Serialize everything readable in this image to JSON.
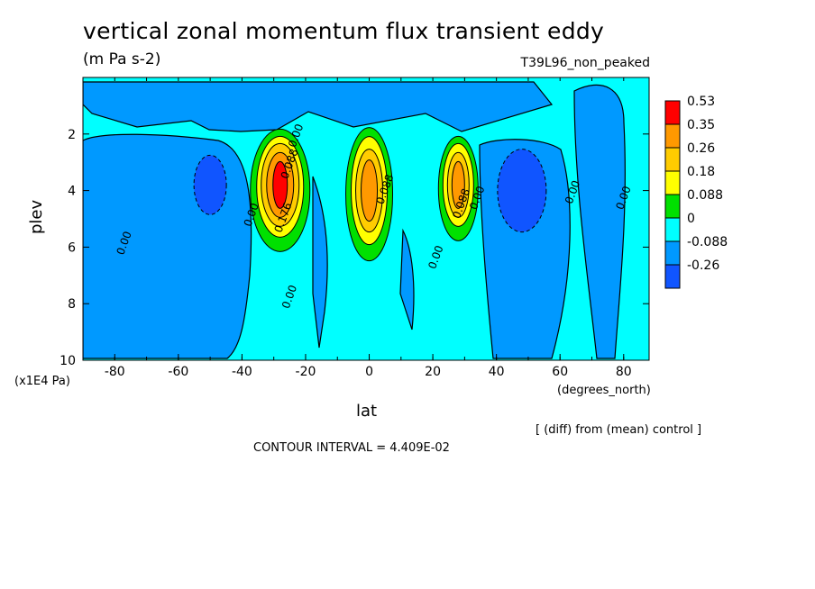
{
  "header": {
    "title": "vertical zonal momentum flux transient eddy",
    "units": "(m Pa s-2)",
    "run_name": "T39L96_non_peaked"
  },
  "axes": {
    "xlabel": "lat",
    "xunit": "(degrees_north)",
    "ylabel": "plev",
    "yunit": "(x1E4 Pa)"
  },
  "footer": {
    "diff_note": "[ (diff) from (mean) control ]",
    "contour_interval": "CONTOUR INTERVAL = 4.409E-02"
  },
  "chart_data": {
    "type": "heatmap",
    "title": "vertical zonal momentum flux transient eddy",
    "subtitle": "(m Pa s-2)",
    "xlabel": "lat",
    "ylabel": "plev",
    "xlim": [
      -90,
      88
    ],
    "ylim": [
      10,
      0
    ],
    "y_inverted": true,
    "x_ticks": [
      -80,
      -60,
      -40,
      -20,
      0,
      20,
      40,
      60,
      80
    ],
    "y_ticks": [
      2,
      4,
      6,
      8,
      10
    ],
    "colorbar": {
      "levels": [
        "0.53",
        "0.35",
        "0.26",
        "0.18",
        "0.088",
        "0",
        "-0.088",
        "-0.26"
      ],
      "colors": [
        "#ff0000",
        "#ff9900",
        "#ffcc00",
        "#ffff00",
        "#00e000",
        "#00ffff",
        "#0099ff",
        "#1055ff"
      ]
    },
    "grid": false,
    "features": [
      {
        "name": "positive maximum",
        "lat": -28,
        "plev": 3.8,
        "value": 0.53
      },
      {
        "name": "positive maximum",
        "lat": 0,
        "plev": 4.0,
        "value": 0.35
      },
      {
        "name": "positive maximum",
        "lat": 28,
        "plev": 3.8,
        "value": 0.35
      },
      {
        "name": "negative minimum",
        "lat": -50,
        "plev": 3.8,
        "value": -0.26
      },
      {
        "name": "negative minimum",
        "lat": 48,
        "plev": 4.0,
        "value": -0.26
      }
    ],
    "contour_labels": [
      {
        "text": "0.00",
        "lat": -22,
        "plev": 2.1
      },
      {
        "text": "0.088",
        "lat": -24,
        "plev": 3.1
      },
      {
        "text": "0.00",
        "lat": -36,
        "plev": 4.9
      },
      {
        "text": "0.176",
        "lat": -26,
        "plev": 5.0
      },
      {
        "text": "0.00",
        "lat": -76,
        "plev": 5.9
      },
      {
        "text": "0.00",
        "lat": -24,
        "plev": 7.8
      },
      {
        "text": "0.088",
        "lat": 6,
        "plev": 4.0
      },
      {
        "text": "0.00",
        "lat": 22,
        "plev": 6.4
      },
      {
        "text": "0.088",
        "lat": 30,
        "plev": 4.5
      },
      {
        "text": "0.00",
        "lat": 35,
        "plev": 4.3
      },
      {
        "text": "0.00",
        "lat": 65,
        "plev": 4.1
      },
      {
        "text": "0.00",
        "lat": 81,
        "plev": 4.3
      }
    ]
  }
}
